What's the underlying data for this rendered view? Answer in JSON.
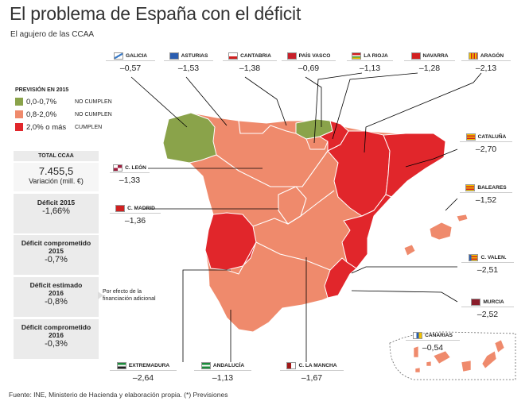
{
  "title": "El problema de España con el déficit",
  "subtitle": "El agujero de las CCAA",
  "source": "Fuente: INE, Ministerio de Hacienda y elaboración propia. (*) Previsiones",
  "colors": {
    "green": "#8aa34a",
    "salmon": "#ef8a6c",
    "red": "#e1262b",
    "sea": "#ffffff",
    "border": "#ffffff"
  },
  "legend": {
    "title": "PREVISIÓN EN 2015",
    "items": [
      {
        "range": "0,0-0,7%",
        "note": "NO CUMPLEN",
        "color": "#8aa34a"
      },
      {
        "range": "0,8-2,0%",
        "note": "NO CUMPLEN",
        "color": "#ef8a6c"
      },
      {
        "range": "2,0% o más",
        "note": "CUMPLEN",
        "color": "#e1262b"
      }
    ]
  },
  "totals": {
    "header": "TOTAL CCAA",
    "total_value": "7.455,5",
    "total_unit": "Variación (mill. €)",
    "deficit_2015_label": "Déficit 2015",
    "deficit_2015_value": "-1,66%",
    "comprometido_2015_label": "Déficit comprometido 2015",
    "comprometido_2015_value": "-0,7%",
    "estimado_2016_label": "Déficit estimado 2016",
    "estimado_2016_value": "-0,8%",
    "comprometido_2016_label": "Déficit comprometido 2016",
    "comprometido_2016_value": "-0,3%",
    "note": "Por efecto de la financiación adicional"
  },
  "regions": {
    "galicia": {
      "name": "GALICIA",
      "value": "–0,57"
    },
    "asturias": {
      "name": "ASTURIAS",
      "value": "–1,53"
    },
    "cantabria": {
      "name": "CANTABRIA",
      "value": "–1,38"
    },
    "pais_vasco": {
      "name": "PAÍS VASCO",
      "value": "–0,69"
    },
    "la_rioja": {
      "name": "LA RIOJA",
      "value": "–1,13"
    },
    "navarra": {
      "name": "NAVARRA",
      "value": "–1,28"
    },
    "aragon": {
      "name": "ARAGÓN",
      "value": "–2,13"
    },
    "cataluna": {
      "name": "CATALUÑA",
      "value": "–2,70"
    },
    "baleares": {
      "name": "BALEARES",
      "value": "–1,52"
    },
    "c_valen": {
      "name": "C. VALEN.",
      "value": "–2,51"
    },
    "murcia": {
      "name": "MURCIA",
      "value": "–2,52"
    },
    "canarias": {
      "name": "CANARIAS",
      "value": "–0,54"
    },
    "c_la_mancha": {
      "name": "C. LA MANCHA",
      "value": "–1,67"
    },
    "andalucia": {
      "name": "ANDALUCÍA",
      "value": "–1,13"
    },
    "extremadura": {
      "name": "EXTREMADURA",
      "value": "–2,64"
    },
    "c_madrid": {
      "name": "C. MADRID",
      "value": "–1,36"
    },
    "c_leon": {
      "name": "C. LEÓN",
      "value": "–1,33"
    }
  }
}
